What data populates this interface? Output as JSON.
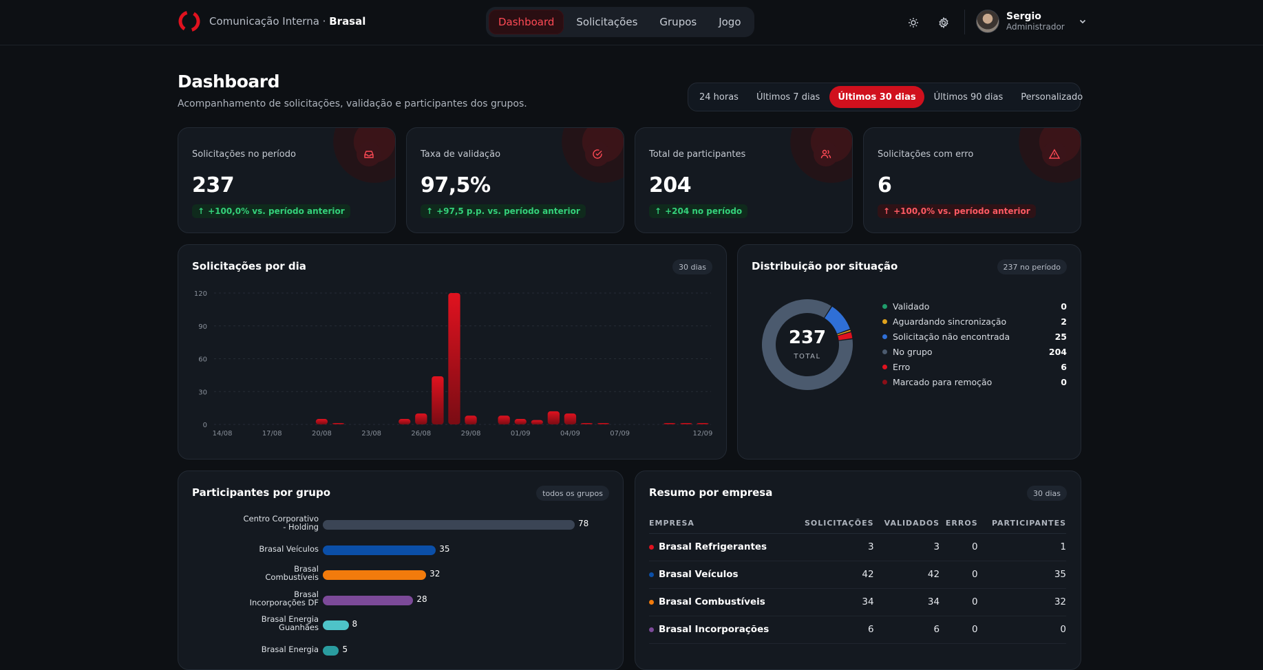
{
  "header": {
    "brand_prefix": "Comunicação Interna ·",
    "brand_name": "Brasal",
    "nav": [
      "Dashboard",
      "Solicitações",
      "Grupos",
      "Jogo"
    ],
    "nav_active": "Dashboard",
    "theme_icon": "sun-icon",
    "settings_icon": "gear-icon",
    "user_name": "Sergio",
    "user_role": "Administrador"
  },
  "page": {
    "title": "Dashboard",
    "subtitle": "Acompanhamento de solicitações, validação e participantes dos grupos.",
    "ranges": [
      "24 horas",
      "Últimos 7 dias",
      "Últimos 30 dias",
      "Últimos 90 dias",
      "Personalizado"
    ],
    "range_active": "Últimos 30 dias"
  },
  "kpis": [
    {
      "label": "Solicitações no período",
      "value": "237",
      "delta": "+100,0% vs. período anterior",
      "trend": "up-good",
      "icon": "inbox-icon"
    },
    {
      "label": "Taxa de validação",
      "value": "97,5%",
      "delta": "+97,5 p.p. vs. período anterior",
      "trend": "up-good",
      "icon": "check-circle-icon"
    },
    {
      "label": "Total de participantes",
      "value": "204",
      "delta": "+204 no período",
      "trend": "up-good",
      "icon": "users-icon"
    },
    {
      "label": "Solicitações com erro",
      "value": "6",
      "delta": "+100,0% vs. período anterior",
      "trend": "up-bad",
      "icon": "alert-triangle-icon"
    }
  ],
  "daily": {
    "title": "Solicitações por dia",
    "pill": "30 dias"
  },
  "distribution": {
    "title": "Distribuição por situação",
    "pill": "237 no período",
    "total": "237",
    "total_label": "TOTAL",
    "items": [
      {
        "label": "Validado",
        "value": 0,
        "color": "#1f9d6b"
      },
      {
        "label": "Aguardando sincronização",
        "value": 2,
        "color": "#e0a21d"
      },
      {
        "label": "Solicitação não encontrada",
        "value": 25,
        "color": "#2f6fd6"
      },
      {
        "label": "No grupo",
        "value": 204,
        "color": "#4b5a6e"
      },
      {
        "label": "Erro",
        "value": 6,
        "color": "#e0121f"
      },
      {
        "label": "Marcado para remoção",
        "value": 0,
        "color": "#8a0f18"
      }
    ]
  },
  "groups": {
    "title": "Participantes por grupo",
    "pill": "todos os grupos",
    "max": 78,
    "items": [
      {
        "label": "Centro Corporativo - Holding",
        "value": 78,
        "color": "#3b4555"
      },
      {
        "label": "Brasal Veículos",
        "value": 35,
        "color": "#0b4fa8"
      },
      {
        "label": "Brasal Combustíveis",
        "value": 32,
        "color": "#f27b0c"
      },
      {
        "label": "Brasal Incorporações DF",
        "value": 28,
        "color": "#7c4a99"
      },
      {
        "label": "Brasal Energia Guanhães",
        "value": 8,
        "color": "#4ec3c8"
      },
      {
        "label": "Brasal Energia",
        "value": 5,
        "color": "#2a9c9f"
      }
    ]
  },
  "companies": {
    "title": "Resumo por empresa",
    "pill": "30 dias",
    "columns": [
      "EMPRESA",
      "SOLICITAÇÕES",
      "VALIDADOS",
      "ERROS",
      "PARTICIPANTES"
    ],
    "rows": [
      {
        "name": "Brasal Refrigerantes",
        "color": "#e0121f",
        "solicitacoes": "3",
        "validados": "3",
        "erros": "0",
        "participantes": "1"
      },
      {
        "name": "Brasal Veículos",
        "color": "#0b4fa8",
        "solicitacoes": "42",
        "validados": "42",
        "erros": "0",
        "participantes": "35"
      },
      {
        "name": "Brasal Combustíveis",
        "color": "#f27b0c",
        "solicitacoes": "34",
        "validados": "34",
        "erros": "0",
        "participantes": "32"
      },
      {
        "name": "Brasal Incorporações",
        "color": "#7c4a99",
        "solicitacoes": "6",
        "validados": "6",
        "erros": "0",
        "participantes": "0"
      }
    ]
  },
  "chart_data": [
    {
      "type": "bar",
      "title": "Solicitações por dia",
      "ylim": [
        0,
        120
      ],
      "yticks": [
        0,
        30,
        60,
        90,
        120
      ],
      "categories": [
        "14/08",
        "15/08",
        "16/08",
        "17/08",
        "18/08",
        "19/08",
        "20/08",
        "21/08",
        "22/08",
        "23/08",
        "24/08",
        "25/08",
        "26/08",
        "27/08",
        "28/08",
        "29/08",
        "30/08",
        "31/08",
        "01/09",
        "02/09",
        "03/09",
        "04/09",
        "05/09",
        "06/09",
        "07/09",
        "08/09",
        "09/09",
        "10/09",
        "11/09",
        "12/09"
      ],
      "xtick_labels": [
        "14/08",
        "17/08",
        "20/08",
        "23/08",
        "26/08",
        "29/08",
        "01/09",
        "04/09",
        "07/09",
        "12/09"
      ],
      "values": [
        0,
        0,
        0,
        0,
        0,
        0,
        5,
        1,
        0,
        0,
        0,
        5,
        10,
        44,
        120,
        8,
        0,
        8,
        5,
        4,
        12,
        10,
        1,
        1,
        0,
        0,
        0,
        1,
        1,
        1
      ],
      "colors": [
        "#e0121f",
        "#7a0c14"
      ]
    },
    {
      "type": "pie",
      "title": "Distribuição por situação",
      "labels": [
        "Validado",
        "Aguardando sincronização",
        "Solicitação não encontrada",
        "No grupo",
        "Erro",
        "Marcado para remoção"
      ],
      "values": [
        0,
        2,
        25,
        204,
        6,
        0
      ]
    },
    {
      "type": "bar",
      "orientation": "horizontal",
      "title": "Participantes por grupo",
      "categories": [
        "Centro Corporativo - Holding",
        "Brasal Veículos",
        "Brasal Combustíveis",
        "Brasal Incorporações DF",
        "Brasal Energia Guanhães",
        "Brasal Energia"
      ],
      "values": [
        78,
        35,
        32,
        28,
        8,
        5
      ]
    }
  ]
}
